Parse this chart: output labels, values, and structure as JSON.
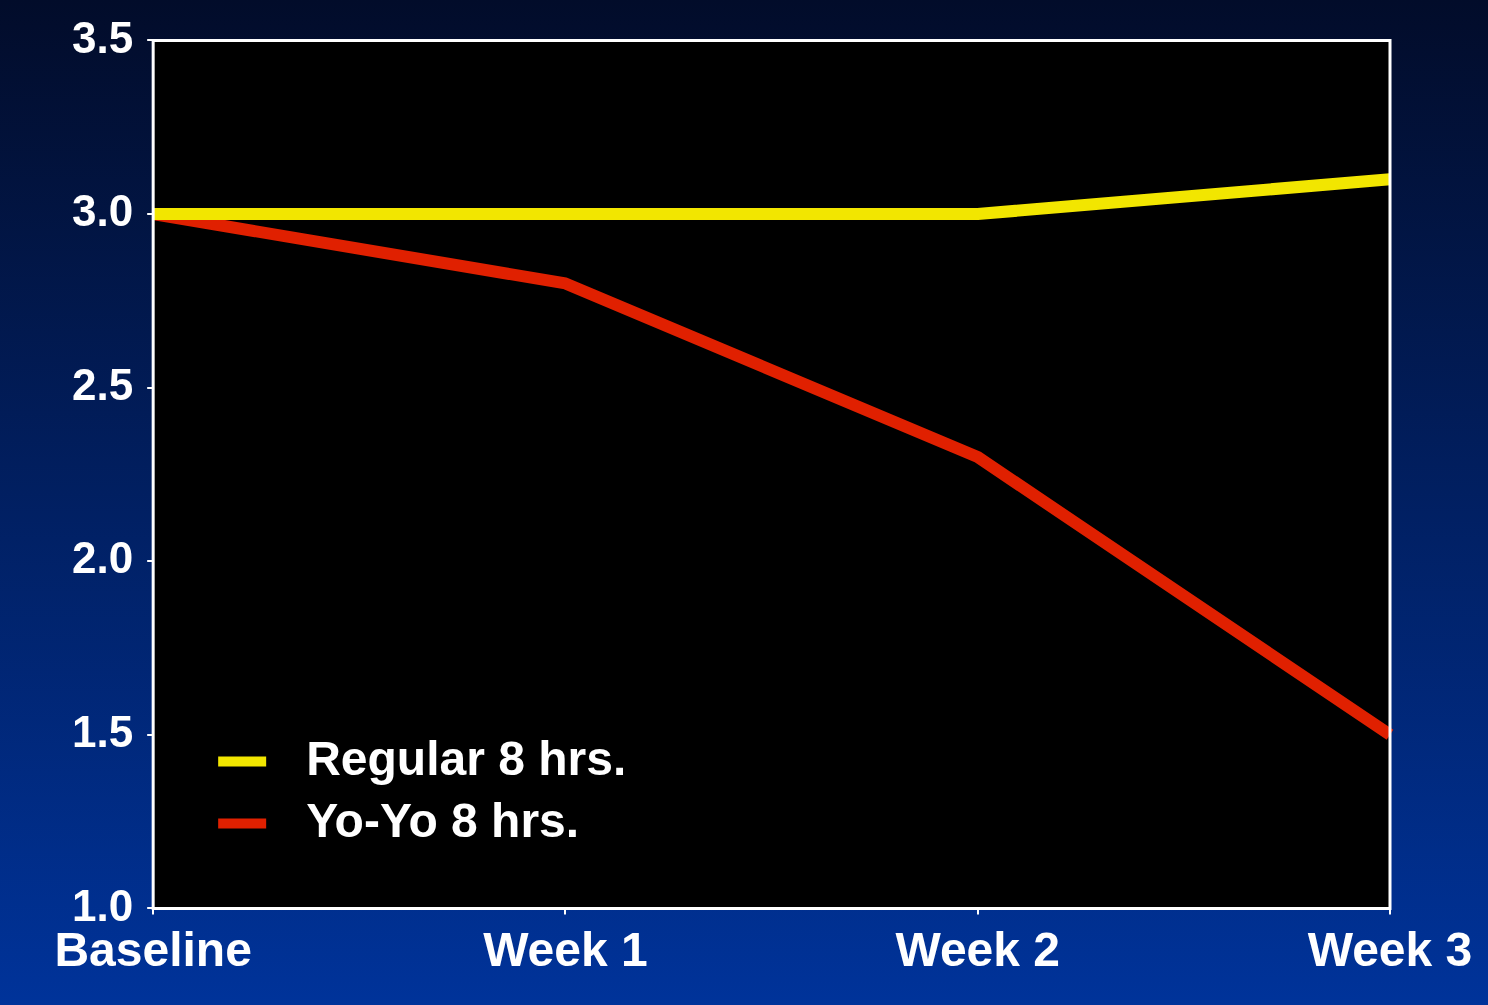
{
  "chart_data": {
    "type": "line",
    "categories": [
      "Baseline",
      "Week 1",
      "Week 2",
      "Week 3"
    ],
    "series": [
      {
        "name": "Regular 8 hrs.",
        "color": "#f2e600",
        "values": [
          3.0,
          3.0,
          3.0,
          3.1
        ]
      },
      {
        "name": "Yo-Yo 8 hrs.",
        "color": "#e02000",
        "values": [
          3.0,
          2.8,
          2.3,
          1.5
        ]
      }
    ],
    "ylim": [
      1.0,
      3.5
    ],
    "yticks": [
      {
        "value": 1,
        "label": "1.0"
      },
      {
        "value": 1.5,
        "label": "1.5"
      },
      {
        "value": 2,
        "label": "2.0"
      },
      {
        "value": 2.5,
        "label": "2.5"
      },
      {
        "value": 3,
        "label": "3.0"
      },
      {
        "value": 3.5,
        "label": "3.5"
      }
    ],
    "grid": false,
    "legend": "bottom left",
    "marker": "none",
    "line_style": "solid"
  }
}
